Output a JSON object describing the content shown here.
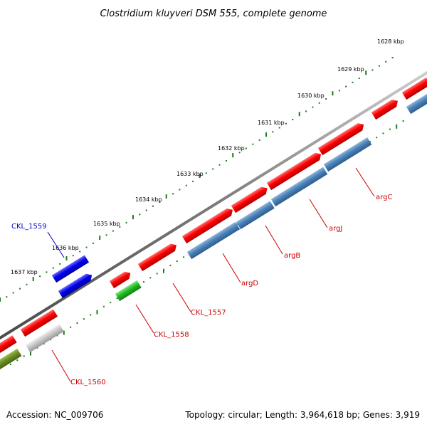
{
  "title": "Clostridium kluyveri DSM 555, complete genome",
  "footer": {
    "accession": "Accession: NC_009706",
    "summary": "Topology: circular; Length: 3,964,618 bp; Genes: 3,919"
  },
  "colors": {
    "backbone": "#8a8a8a",
    "ticks": "#1f7a1f",
    "label_highlight": "#0000cc",
    "label_default": "#cc0000"
  },
  "tick_labels": [
    "1628 kbp",
    "1629 kbp",
    "1630 kbp",
    "1631 kbp",
    "1632 kbp",
    "1633 kbp",
    "1634 kbp",
    "1635 kbp",
    "1636 kbp",
    "1637 kbp"
  ],
  "genes": [
    {
      "label": "CKL_1559",
      "color": "blue"
    },
    {
      "label": "CKL_1560",
      "color": "red"
    },
    {
      "label": "CKL_1558",
      "color": "red"
    },
    {
      "label": "CKL_1557",
      "color": "red"
    },
    {
      "label": "argD",
      "color": "red"
    },
    {
      "label": "argB",
      "color": "red"
    },
    {
      "label": "argJ",
      "color": "red"
    },
    {
      "label": "argC",
      "color": "red"
    }
  ]
}
